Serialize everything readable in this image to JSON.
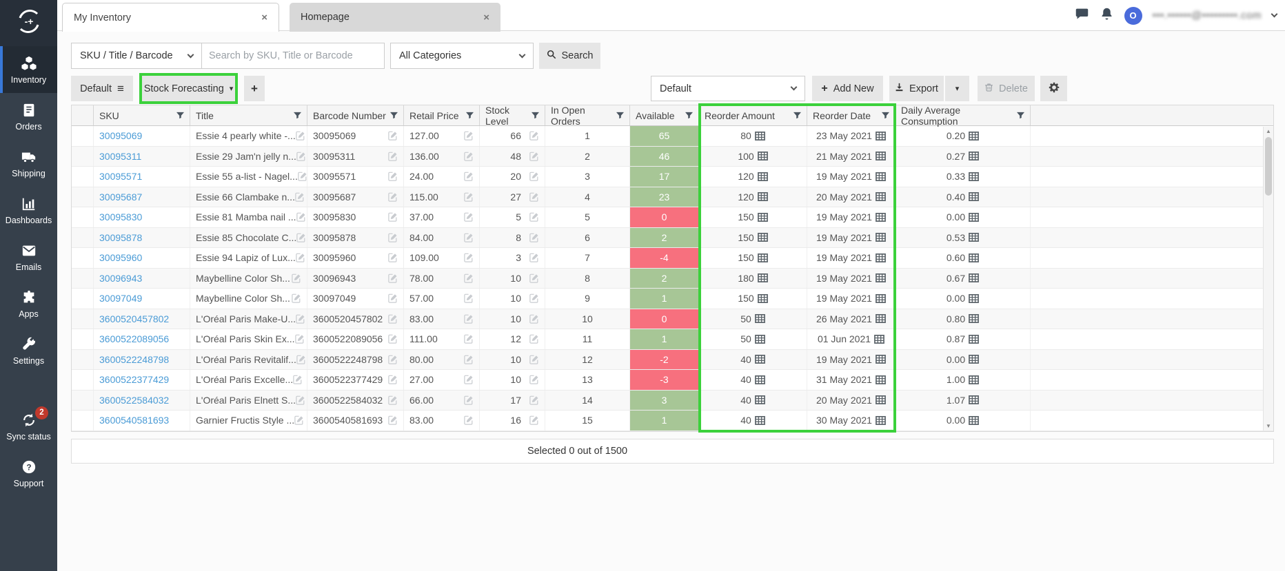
{
  "topbar": {
    "tabs": [
      {
        "label": "My Inventory"
      },
      {
        "label": "Homepage"
      }
    ],
    "avatar_initial": "O",
    "email_obscured": "•••.••••••@•••••••••.com"
  },
  "sidebar": {
    "items": [
      {
        "label": "Inventory",
        "icon": "cubes-icon",
        "active": true
      },
      {
        "label": "Orders",
        "icon": "book-icon"
      },
      {
        "label": "Shipping",
        "icon": "truck-icon"
      },
      {
        "label": "Dashboards",
        "icon": "bar-chart-icon"
      },
      {
        "label": "Emails",
        "icon": "envelope-icon"
      },
      {
        "label": "Apps",
        "icon": "puzzle-icon"
      },
      {
        "label": "Settings",
        "icon": "wrench-icon"
      },
      {
        "label": "Sync status",
        "icon": "sync-icon",
        "badge": "2"
      },
      {
        "label": "Support",
        "icon": "question-icon"
      }
    ]
  },
  "search": {
    "field_select_value": "SKU / Title / Barcode",
    "input_placeholder": "Search by SKU, Title or Barcode",
    "category_select_value": "All Categories",
    "search_button_label": "Search"
  },
  "toolbar": {
    "view_tab_default": "Default",
    "view_tab_forecast": "Stock Forecasting",
    "add_view_label": "+",
    "layout_select_value": "Default",
    "add_new_label": "Add New",
    "export_label": "Export",
    "delete_label": "Delete"
  },
  "table": {
    "columns": [
      {
        "label": ""
      },
      {
        "label": "SKU"
      },
      {
        "label": "Title"
      },
      {
        "label": "Barcode Number"
      },
      {
        "label": "Retail Price"
      },
      {
        "label": "Stock Level"
      },
      {
        "label": "In Open Orders"
      },
      {
        "label": "Available"
      },
      {
        "label": "Reorder Amount"
      },
      {
        "label": "Reorder Date"
      },
      {
        "label": "Daily Average Consumption"
      }
    ],
    "rows": [
      {
        "sku": "30095069",
        "title": "Essie 4 pearly white -...",
        "barcode": "30095069",
        "retail": "127.00",
        "stock": "66",
        "open_orders": "1",
        "available": "65",
        "available_state": "green",
        "reorder_amount": "80",
        "reorder_date": "23 May 2021",
        "daily_avg": "0.20"
      },
      {
        "sku": "30095311",
        "title": "Essie 29 Jam'n jelly n...",
        "barcode": "30095311",
        "retail": "136.00",
        "stock": "48",
        "open_orders": "2",
        "available": "46",
        "available_state": "green",
        "reorder_amount": "100",
        "reorder_date": "21 May 2021",
        "daily_avg": "0.27"
      },
      {
        "sku": "30095571",
        "title": "Essie 55 a-list - Nagel...",
        "barcode": "30095571",
        "retail": "24.00",
        "stock": "20",
        "open_orders": "3",
        "available": "17",
        "available_state": "green",
        "reorder_amount": "120",
        "reorder_date": "19 May 2021",
        "daily_avg": "0.33"
      },
      {
        "sku": "30095687",
        "title": "Essie 66 Clambake n...",
        "barcode": "30095687",
        "retail": "115.00",
        "stock": "27",
        "open_orders": "4",
        "available": "23",
        "available_state": "green",
        "reorder_amount": "120",
        "reorder_date": "20 May 2021",
        "daily_avg": "0.40"
      },
      {
        "sku": "30095830",
        "title": "Essie 81 Mamba nail ...",
        "barcode": "30095830",
        "retail": "37.00",
        "stock": "5",
        "open_orders": "5",
        "available": "0",
        "available_state": "red",
        "reorder_amount": "150",
        "reorder_date": "19 May 2021",
        "daily_avg": "0.00"
      },
      {
        "sku": "30095878",
        "title": "Essie 85 Chocolate C...",
        "barcode": "30095878",
        "retail": "84.00",
        "stock": "8",
        "open_orders": "6",
        "available": "2",
        "available_state": "green",
        "reorder_amount": "150",
        "reorder_date": "19 May 2021",
        "daily_avg": "0.53"
      },
      {
        "sku": "30095960",
        "title": "Essie 94 Lapiz of Lux...",
        "barcode": "30095960",
        "retail": "109.00",
        "stock": "3",
        "open_orders": "7",
        "available": "-4",
        "available_state": "red",
        "reorder_amount": "150",
        "reorder_date": "19 May 2021",
        "daily_avg": "0.60"
      },
      {
        "sku": "30096943",
        "title": "Maybelline Color Sh...",
        "barcode": "30096943",
        "retail": "78.00",
        "stock": "10",
        "open_orders": "8",
        "available": "2",
        "available_state": "green",
        "reorder_amount": "180",
        "reorder_date": "19 May 2021",
        "daily_avg": "0.67"
      },
      {
        "sku": "30097049",
        "title": "Maybelline Color Sh...",
        "barcode": "30097049",
        "retail": "57.00",
        "stock": "10",
        "open_orders": "9",
        "available": "1",
        "available_state": "green",
        "reorder_amount": "150",
        "reorder_date": "19 May 2021",
        "daily_avg": "0.00"
      },
      {
        "sku": "3600520457802",
        "title": "L'Oréal Paris Make-U...",
        "barcode": "3600520457802",
        "retail": "83.00",
        "stock": "10",
        "open_orders": "10",
        "available": "0",
        "available_state": "red",
        "reorder_amount": "50",
        "reorder_date": "26 May 2021",
        "daily_avg": "0.80"
      },
      {
        "sku": "3600522089056",
        "title": "L'Oréal Paris Skin Ex...",
        "barcode": "3600522089056",
        "retail": "111.00",
        "stock": "12",
        "open_orders": "11",
        "available": "1",
        "available_state": "green",
        "reorder_amount": "50",
        "reorder_date": "01 Jun 2021",
        "daily_avg": "0.87"
      },
      {
        "sku": "3600522248798",
        "title": "L'Oréal Paris Revitalif...",
        "barcode": "3600522248798",
        "retail": "80.00",
        "stock": "10",
        "open_orders": "12",
        "available": "-2",
        "available_state": "red",
        "reorder_amount": "40",
        "reorder_date": "19 May 2021",
        "daily_avg": "0.00"
      },
      {
        "sku": "3600522377429",
        "title": "L'Oréal Paris Excelle...",
        "barcode": "3600522377429",
        "retail": "27.00",
        "stock": "10",
        "open_orders": "13",
        "available": "-3",
        "available_state": "red",
        "reorder_amount": "40",
        "reorder_date": "31 May 2021",
        "daily_avg": "1.00"
      },
      {
        "sku": "3600522584032",
        "title": "L'Oréal Paris Elnett S...",
        "barcode": "3600522584032",
        "retail": "66.00",
        "stock": "17",
        "open_orders": "14",
        "available": "3",
        "available_state": "green",
        "reorder_amount": "40",
        "reorder_date": "20 May 2021",
        "daily_avg": "1.07"
      },
      {
        "sku": "3600540581693",
        "title": "Garnier Fructis Style ...",
        "barcode": "3600540581693",
        "retail": "83.00",
        "stock": "16",
        "open_orders": "15",
        "available": "1",
        "available_state": "green",
        "reorder_amount": "40",
        "reorder_date": "30 May 2021",
        "daily_avg": "0.00"
      }
    ]
  },
  "footer": {
    "selection_summary": "Selected 0 out of 1500"
  },
  "colors": {
    "highlight_green": "#3bd13b",
    "available_green": "#a7c696",
    "available_red": "#f7707e",
    "accent_blue": "#3878d8",
    "badge_red": "#c0392c",
    "avatar_blue": "#4a6bdb",
    "link_blue": "#4a9bd6"
  }
}
